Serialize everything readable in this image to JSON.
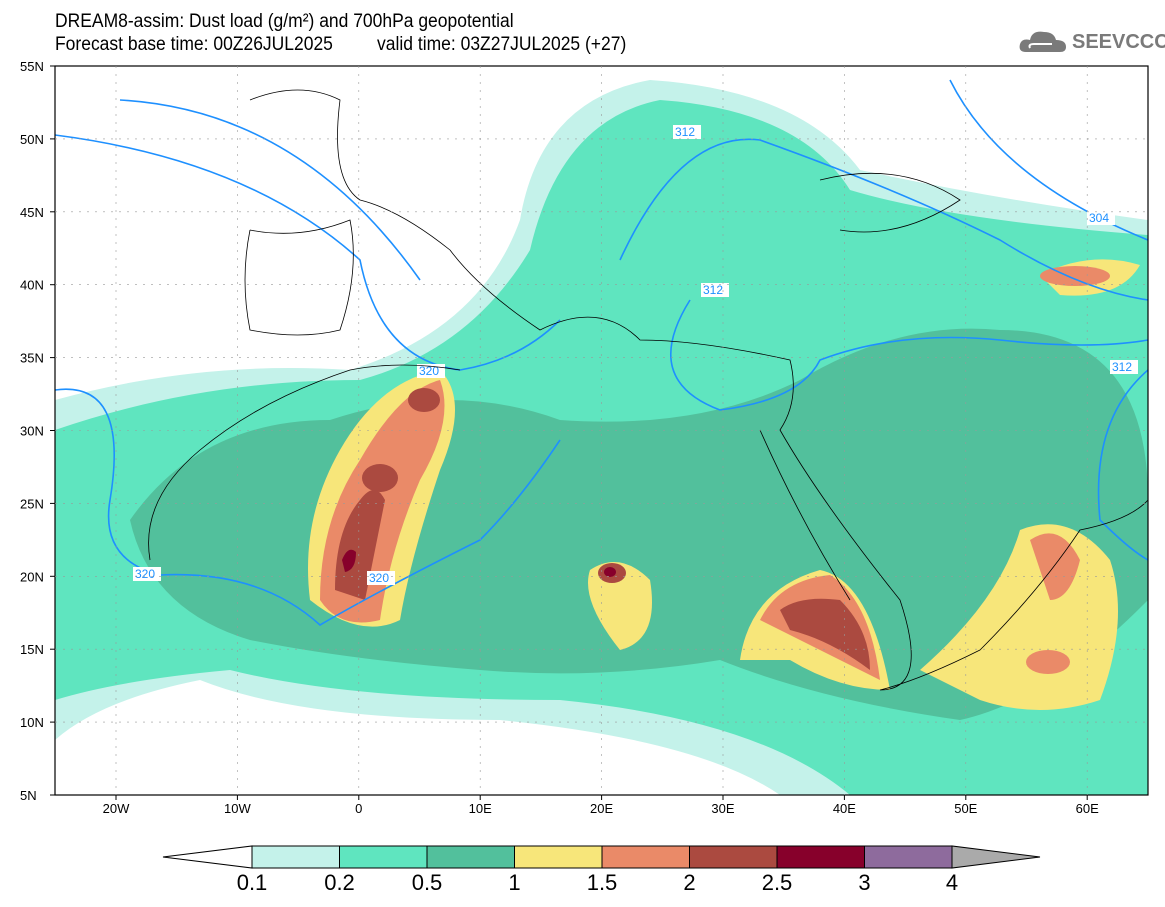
{
  "title_line1": "DREAM8-assim: Dust load (g/m²) and 700hPa geopotential",
  "forecast_base": "Forecast base time: 00Z26JUL2025",
  "valid_time": "valid time: 03Z27JUL2025 (+27)",
  "logo_text": "SEEVCCC",
  "lat_ticks": [
    "55N",
    "50N",
    "45N",
    "40N",
    "35N",
    "30N",
    "25N",
    "20N",
    "15N",
    "10N",
    "5N"
  ],
  "lon_ticks": [
    "20W",
    "10W",
    "0",
    "10E",
    "20E",
    "30E",
    "40E",
    "50E",
    "60E"
  ],
  "contour_labels": [
    "312",
    "312",
    "304",
    "312",
    "320",
    "320",
    "320"
  ],
  "colorbar": {
    "levels": [
      "0.1",
      "0.2",
      "0.5",
      "1",
      "1.5",
      "2",
      "2.5",
      "3",
      "4"
    ],
    "colors": [
      "#c4f2ea",
      "#5fe5bf",
      "#52c09c",
      "#f7e67a",
      "#ea8a68",
      "#ab4a40",
      "#87002b",
      "#8e6b9d"
    ],
    "over_color": "#aaaaaa",
    "under_color": "#ffffff"
  }
}
